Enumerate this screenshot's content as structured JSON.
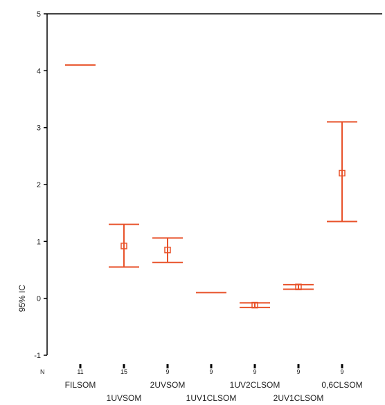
{
  "chart_data": {
    "type": "error-bar",
    "ylabel": "95% IC",
    "ylim": [
      -1,
      5
    ],
    "yticks": [
      -1,
      0,
      1,
      2,
      3,
      4,
      5
    ],
    "n_row_label": "N",
    "color": "#e8522a",
    "categories": [
      {
        "label": "FILSOM",
        "n": "11",
        "mean": 4.1,
        "lower": 4.1,
        "upper": 4.1,
        "row": 1
      },
      {
        "label": "1UVSOM",
        "n": "15",
        "mean": 0.92,
        "lower": 0.55,
        "upper": 1.3,
        "row": 2
      },
      {
        "label": "2UVSOM",
        "n": "9",
        "mean": 0.85,
        "lower": 0.63,
        "upper": 1.06,
        "row": 1
      },
      {
        "label": "1UV1CLSOM",
        "n": "9",
        "mean": 0.1,
        "lower": 0.1,
        "upper": 0.1,
        "row": 2
      },
      {
        "label": "1UV2CLSOM",
        "n": "9",
        "mean": -0.12,
        "lower": -0.16,
        "upper": -0.08,
        "row": 1
      },
      {
        "label": "2UV1CLSOM",
        "n": "9",
        "mean": 0.2,
        "lower": 0.16,
        "upper": 0.24,
        "row": 2
      },
      {
        "label": "0,6CLSOM",
        "n": "9",
        "mean": 2.2,
        "lower": 1.35,
        "upper": 3.1,
        "row": 1
      }
    ]
  }
}
